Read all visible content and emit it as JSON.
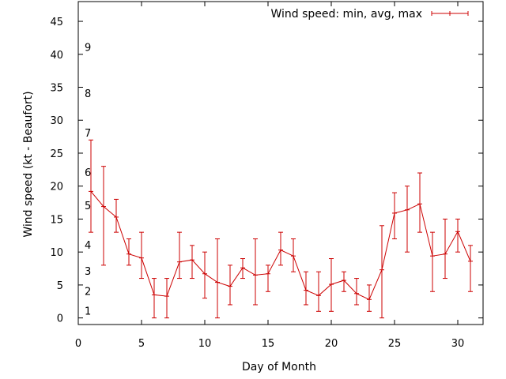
{
  "chart_data": {
    "type": "line",
    "xlabel": "Day of Month",
    "ylabel": "Wind speed (kt - Beaufort)",
    "xlim": [
      0,
      32
    ],
    "ylim": [
      -1,
      48
    ],
    "xticks": [
      0,
      5,
      10,
      15,
      20,
      25,
      30
    ],
    "yticks": [
      0,
      5,
      10,
      15,
      20,
      25,
      30,
      35,
      40,
      45
    ],
    "grid": false,
    "legend_position": "top-right",
    "beaufort_labels": [
      {
        "label": "1",
        "y": 1
      },
      {
        "label": "2",
        "y": 4
      },
      {
        "label": "3",
        "y": 7
      },
      {
        "label": "4",
        "y": 11
      },
      {
        "label": "5",
        "y": 17
      },
      {
        "label": "6",
        "y": 22
      },
      {
        "label": "7",
        "y": 28
      },
      {
        "label": "8",
        "y": 34
      },
      {
        "label": "9",
        "y": 41
      }
    ],
    "series": [
      {
        "name": "Wind speed: min, avg, max",
        "color": "#cc0000",
        "x": [
          1,
          2,
          3,
          4,
          5,
          6,
          7,
          8,
          9,
          10,
          11,
          12,
          13,
          14,
          15,
          16,
          17,
          18,
          19,
          20,
          21,
          22,
          23,
          24,
          25,
          26,
          27,
          28,
          29,
          30,
          31
        ],
        "avg": [
          19.2,
          16.9,
          15.3,
          9.7,
          9.1,
          3.5,
          3.3,
          8.5,
          8.8,
          6.7,
          5.4,
          4.8,
          7.6,
          6.5,
          6.7,
          10.3,
          9.4,
          4.2,
          3.4,
          5.1,
          5.7,
          3.7,
          2.8,
          7.3,
          15.9,
          16.4,
          17.3,
          9.4,
          9.7,
          13.1,
          8.6
        ],
        "min": [
          13,
          8,
          13,
          8,
          6,
          0,
          0,
          6,
          6,
          3,
          0,
          2,
          6,
          2,
          4,
          8,
          7,
          2,
          1,
          1,
          4,
          2,
          1,
          0,
          12,
          10,
          13,
          4,
          6,
          10,
          4
        ],
        "max": [
          27,
          23,
          18,
          12,
          13,
          6,
          6,
          13,
          11,
          10,
          12,
          8,
          9,
          12,
          8,
          13,
          12,
          7,
          7,
          9,
          7,
          6,
          5,
          14,
          19,
          20,
          22,
          13,
          15,
          15,
          11
        ]
      }
    ]
  }
}
